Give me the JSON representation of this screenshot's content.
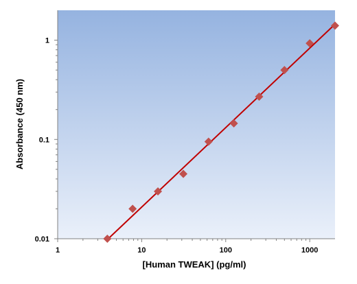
{
  "chart_data": {
    "type": "scatter",
    "xlabel": "[Human TWEAK] (pg/ml)",
    "ylabel": "Absorbance (450 nm)",
    "x_scale": "log",
    "y_scale": "log",
    "xlim": [
      1,
      2000
    ],
    "ylim": [
      0.01,
      2
    ],
    "x_ticks": [
      1,
      10,
      100,
      1000
    ],
    "x_tick_labels": [
      "1",
      "10",
      "100",
      "1000"
    ],
    "y_ticks": [
      0.01,
      0.1,
      1
    ],
    "y_tick_labels": [
      "0.01",
      "0.1",
      "1"
    ],
    "grid": false,
    "legend": "none",
    "series": [
      {
        "x": [
          3.9,
          7.8,
          15.6,
          31.3,
          62.5,
          125,
          250,
          500,
          1000,
          2000
        ],
        "y": [
          0.01,
          0.02,
          0.03,
          0.045,
          0.095,
          0.145,
          0.27,
          0.5,
          0.93,
          1.4
        ],
        "marker": "diamond",
        "color": "#c0504d"
      }
    ],
    "fit_line": {
      "x": [
        3.9,
        2000
      ],
      "y": [
        0.0098,
        1.45
      ],
      "color": "#c00000"
    },
    "plot_background": [
      "#95b3e0",
      "#eaf0fa"
    ]
  }
}
